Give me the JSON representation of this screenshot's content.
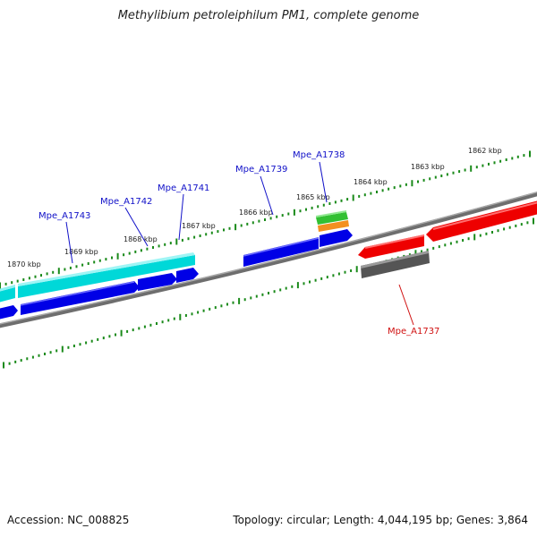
{
  "title": "Methylibium petroleiphilum PM1, complete genome",
  "footer": {
    "accession": "Accession: NC_008825",
    "summary": "Topology: circular; Length: 4,044,195 bp; Genes: 3,864"
  },
  "colors": {
    "backbone": "#808080",
    "tick": "#1a8a1a",
    "label_blue": "#1010c8",
    "label_red": "#d01010"
  },
  "scale_labels": [
    "1870 kbp",
    "1869 kbp",
    "1868 kbp",
    "1867 kbp",
    "1866 kbp",
    "1865 kbp",
    "1864 kbp",
    "1863 kbp",
    "1862 kbp"
  ],
  "gene_labels": [
    {
      "name": "Mpe_A1743",
      "color": "#1010c8"
    },
    {
      "name": "Mpe_A1742",
      "color": "#1010c8"
    },
    {
      "name": "Mpe_A1741",
      "color": "#1010c8"
    },
    {
      "name": "Mpe_A1739",
      "color": "#1010c8"
    },
    {
      "name": "Mpe_A1738",
      "color": "#1010c8"
    },
    {
      "name": "Mpe_A1737",
      "color": "#d01010"
    }
  ]
}
